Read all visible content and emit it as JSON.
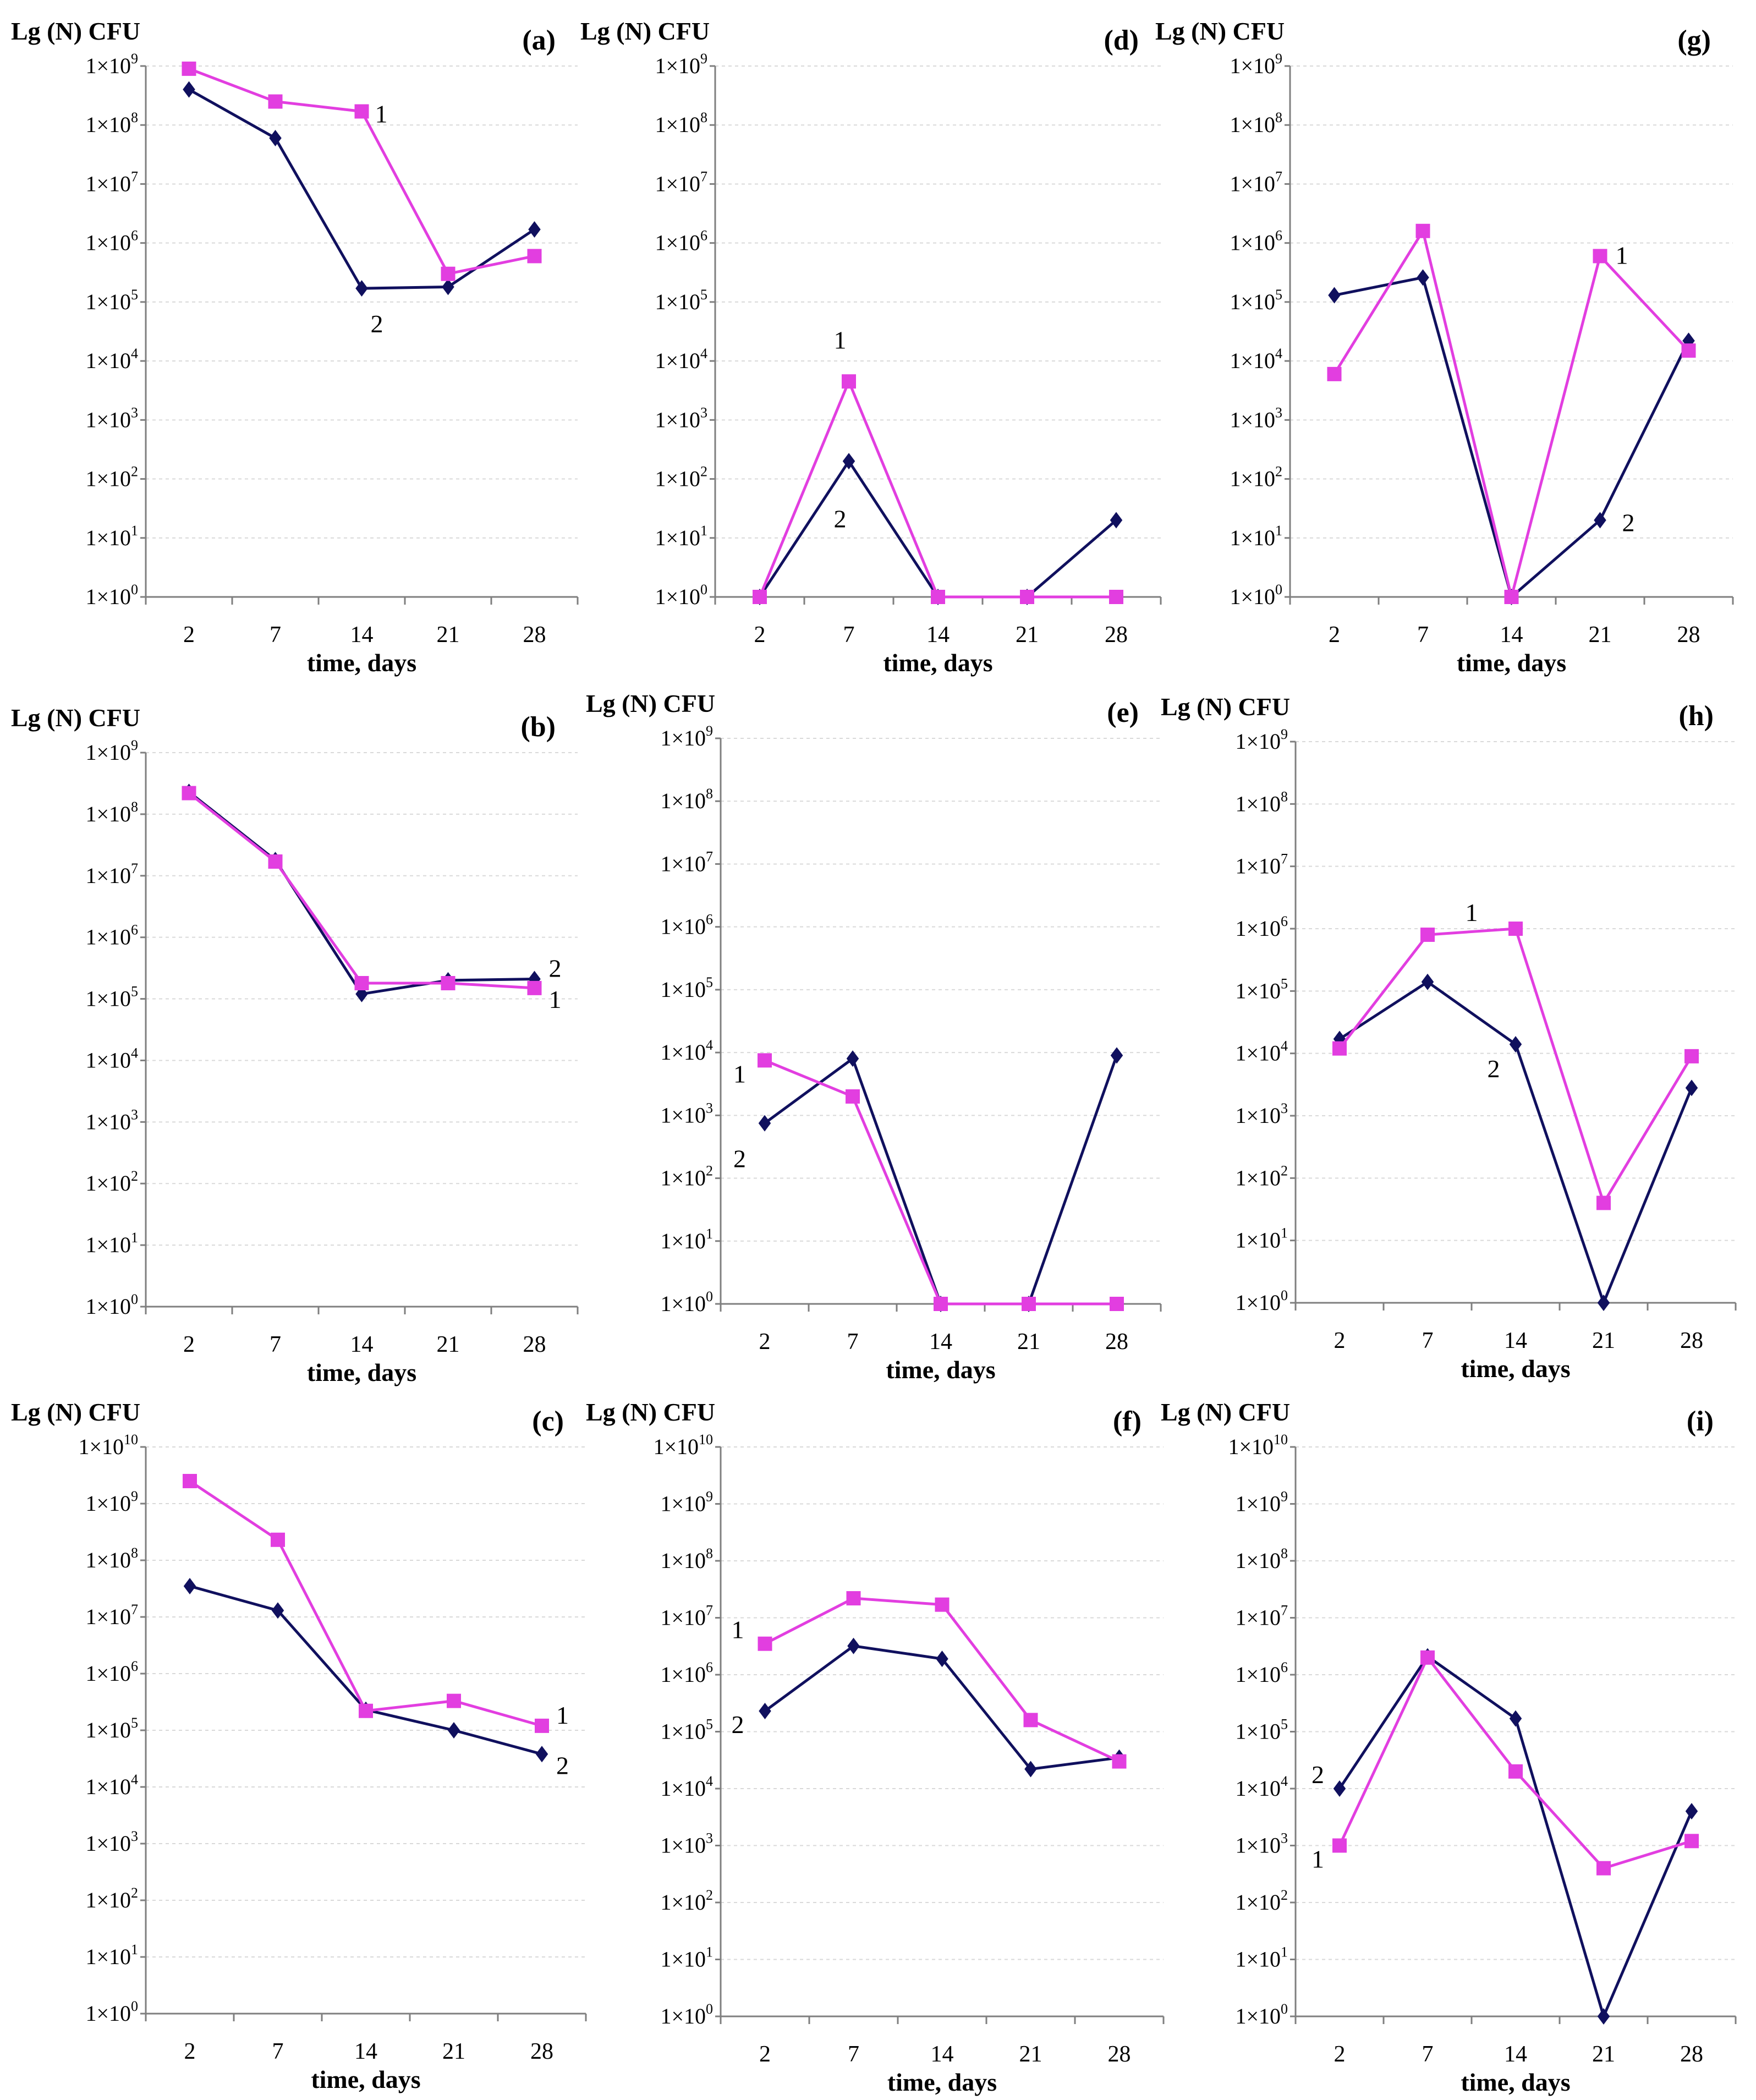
{
  "figure": {
    "colors": {
      "series1": "#e23ee0",
      "series2": "#10105e"
    }
  },
  "chart_data": [
    {
      "id": "a",
      "type": "line",
      "panel_label": "(a)",
      "ylabel": "Lg (N) CFU",
      "xlabel": "time, days",
      "x": [
        2,
        7,
        14,
        21,
        28
      ],
      "ylim_exp": [
        0,
        9
      ],
      "ylim": [
        1,
        1000000000
      ],
      "y_tick_labels": [
        "1×10^0",
        "1×10^1",
        "1×10^2",
        "1×10^3",
        "1×10^4",
        "1×10^5",
        "1×10^6",
        "1×10^7",
        "1×10^8",
        "1×10^9"
      ],
      "series": [
        {
          "name": "1",
          "values": [
            900000000,
            250000000,
            170000000,
            300000,
            600000
          ]
        },
        {
          "name": "2",
          "values": [
            400000000,
            60000000,
            170000,
            180000,
            1700000
          ]
        }
      ],
      "series_labels": [
        {
          "text": "1",
          "x": 14,
          "y": 170000000
        },
        {
          "text": "2",
          "x": 14,
          "y": 170000
        }
      ]
    },
    {
      "id": "b",
      "type": "line",
      "panel_label": "(b)",
      "ylabel": "Lg (N) CFU",
      "xlabel": "time, days",
      "x": [
        2,
        7,
        14,
        21,
        28
      ],
      "ylim_exp": [
        0,
        9
      ],
      "ylim": [
        1,
        1000000000
      ],
      "y_tick_labels": [
        "1×10^0",
        "1×10^1",
        "1×10^2",
        "1×10^3",
        "1×10^4",
        "1×10^5",
        "1×10^6",
        "1×10^7",
        "1×10^8",
        "1×10^9"
      ],
      "series": [
        {
          "name": "1",
          "values": [
            220000000,
            17000000,
            180000,
            180000,
            150000
          ]
        },
        {
          "name": "2",
          "values": [
            230000000,
            18000000,
            120000,
            200000,
            210000
          ]
        }
      ],
      "series_labels": [
        {
          "text": "2",
          "x": 28,
          "y": 210000
        },
        {
          "text": "1",
          "x": 28,
          "y": 150000
        }
      ]
    },
    {
      "id": "c",
      "type": "line",
      "panel_label": "(c)",
      "ylabel": "Lg (N) CFU",
      "xlabel": "time, days",
      "x": [
        2,
        7,
        14,
        21,
        28
      ],
      "ylim_exp": [
        0,
        10
      ],
      "ylim": [
        1,
        10000000000
      ],
      "y_tick_labels": [
        "1×10^0",
        "1×10^1",
        "1×10^2",
        "1×10^3",
        "1×10^4",
        "1×10^5",
        "1×10^6",
        "1×10^7",
        "1×10^8",
        "1×10^9",
        "1×10^10"
      ],
      "series": [
        {
          "name": "1",
          "values": [
            2500000000,
            230000000,
            220000,
            330000,
            120000
          ]
        },
        {
          "name": "2",
          "values": [
            35000000,
            13000000,
            230000,
            100000,
            38000
          ]
        }
      ],
      "series_labels": [
        {
          "text": "1",
          "x": 28,
          "y": 120000
        },
        {
          "text": "2",
          "x": 28,
          "y": 38000
        }
      ]
    },
    {
      "id": "d",
      "type": "line",
      "panel_label": "(d)",
      "ylabel": "Lg (N) CFU",
      "xlabel": "time, days",
      "x": [
        2,
        7,
        14,
        21,
        28
      ],
      "ylim_exp": [
        0,
        9
      ],
      "ylim": [
        1,
        1000000000
      ],
      "y_tick_labels": [
        "1×10^0",
        "1×10^1",
        "1×10^2",
        "1×10^3",
        "1×10^4",
        "1×10^5",
        "1×10^6",
        "1×10^7",
        "1×10^8",
        "1×10^9"
      ],
      "series": [
        {
          "name": "1",
          "values": [
            1,
            4500,
            1,
            1,
            1
          ]
        },
        {
          "name": "2",
          "values": [
            1,
            200,
            1,
            1,
            20
          ]
        }
      ],
      "series_labels": [
        {
          "text": "1",
          "x": 7,
          "y": 4500
        },
        {
          "text": "2",
          "x": 7,
          "y": 200
        }
      ]
    },
    {
      "id": "e",
      "type": "line",
      "panel_label": "(e)",
      "ylabel": "Lg (N) CFU",
      "xlabel": "time, days",
      "x": [
        2,
        7,
        14,
        21,
        28
      ],
      "ylim_exp": [
        0,
        9
      ],
      "ylim": [
        1,
        1000000000
      ],
      "y_tick_labels": [
        "1×10^0",
        "1×10^1",
        "1×10^2",
        "1×10^3",
        "1×10^4",
        "1×10^5",
        "1×10^6",
        "1×10^7",
        "1×10^8",
        "1×10^9"
      ],
      "series": [
        {
          "name": "1",
          "values": [
            7500,
            2000,
            1,
            1,
            1
          ]
        },
        {
          "name": "2",
          "values": [
            750,
            8000,
            1,
            1,
            9000
          ]
        }
      ],
      "series_labels": [
        {
          "text": "1",
          "x": 2,
          "y": 7500
        },
        {
          "text": "2",
          "x": 2,
          "y": 750
        }
      ]
    },
    {
      "id": "f",
      "type": "line",
      "panel_label": "(f)",
      "ylabel": "Lg (N) CFU",
      "xlabel": "time, days",
      "x": [
        2,
        7,
        14,
        21,
        28
      ],
      "ylim_exp": [
        0,
        10
      ],
      "ylim": [
        1,
        10000000000
      ],
      "y_tick_labels": [
        "1×10^0",
        "1×10^1",
        "1×10^2",
        "1×10^3",
        "1×10^4",
        "1×10^5",
        "1×10^6",
        "1×10^7",
        "1×10^8",
        "1×10^9",
        "1×10^10"
      ],
      "series": [
        {
          "name": "1",
          "values": [
            3500000,
            22000000,
            17000000,
            160000,
            30000
          ]
        },
        {
          "name": "2",
          "values": [
            230000,
            3200000,
            1900000,
            22000,
            35000
          ]
        }
      ],
      "series_labels": [
        {
          "text": "1",
          "x": 2,
          "y": 3500000
        },
        {
          "text": "2",
          "x": 2,
          "y": 230000
        }
      ]
    },
    {
      "id": "g",
      "type": "line",
      "panel_label": "(g)",
      "ylabel": "Lg (N) CFU",
      "xlabel": "time, days",
      "x": [
        2,
        7,
        14,
        21,
        28
      ],
      "ylim_exp": [
        0,
        9
      ],
      "ylim": [
        1,
        1000000000
      ],
      "y_tick_labels": [
        "1×10^0",
        "1×10^1",
        "1×10^2",
        "1×10^3",
        "1×10^4",
        "1×10^5",
        "1×10^6",
        "1×10^7",
        "1×10^8",
        "1×10^9"
      ],
      "series": [
        {
          "name": "1",
          "values": [
            6000,
            1600000,
            1,
            600000,
            15000
          ]
        },
        {
          "name": "2",
          "values": [
            130000,
            260000,
            1,
            20,
            22000
          ]
        }
      ],
      "series_labels": [
        {
          "text": "1",
          "x": 21,
          "y": 600000
        },
        {
          "text": "2",
          "x": 21,
          "y": 20
        }
      ]
    },
    {
      "id": "h",
      "type": "line",
      "panel_label": "(h)",
      "ylabel": "Lg (N) CFU",
      "xlabel": "time, days",
      "x": [
        2,
        7,
        14,
        21,
        28
      ],
      "ylim_exp": [
        0,
        9
      ],
      "ylim": [
        1,
        1000000000
      ],
      "y_tick_labels": [
        "1×10^0",
        "1×10^1",
        "1×10^2",
        "1×10^3",
        "1×10^4",
        "1×10^5",
        "1×10^6",
        "1×10^7",
        "1×10^8",
        "1×10^9"
      ],
      "series": [
        {
          "name": "1",
          "values": [
            12000,
            800000,
            1000000,
            40,
            9000
          ]
        },
        {
          "name": "2",
          "values": [
            17000,
            140000,
            14000,
            1,
            2800
          ]
        }
      ],
      "series_labels": [
        {
          "text": "1",
          "x": 10.5,
          "y": 1000000
        },
        {
          "text": "2",
          "x": 14,
          "y": 14000
        }
      ]
    },
    {
      "id": "i",
      "type": "line",
      "panel_label": "(i)",
      "ylabel": "Lg (N) CFU",
      "xlabel": "time, days",
      "x": [
        2,
        7,
        14,
        21,
        28
      ],
      "ylim_exp": [
        0,
        10
      ],
      "ylim": [
        1,
        10000000000
      ],
      "y_tick_labels": [
        "1×10^0",
        "1×10^1",
        "1×10^2",
        "1×10^3",
        "1×10^4",
        "1×10^5",
        "1×10^6",
        "1×10^7",
        "1×10^8",
        "1×10^9",
        "1×10^10"
      ],
      "series": [
        {
          "name": "1",
          "values": [
            1000,
            2000000,
            20000,
            400,
            1200
          ]
        },
        {
          "name": "2",
          "values": [
            10000,
            2100000,
            170000,
            1,
            4000
          ]
        }
      ],
      "series_labels": [
        {
          "text": "2",
          "x": 2,
          "y": 10000
        },
        {
          "text": "1",
          "x": 2,
          "y": 1000
        }
      ]
    }
  ]
}
